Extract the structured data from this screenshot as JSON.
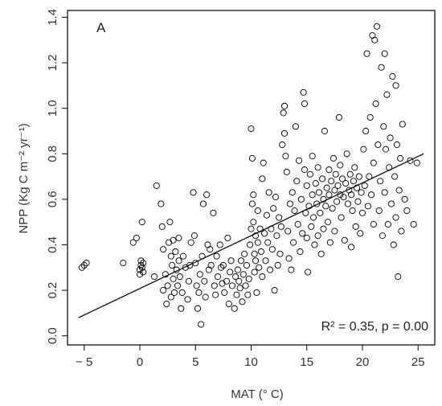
{
  "chart_data": {
    "type": "scatter",
    "panel_label": "A",
    "xlabel": "MAT (° C)",
    "ylabel": "NPP (Kg C m⁻² yr⁻¹)",
    "xlim": [
      -6.5,
      26.5
    ],
    "ylim": [
      -0.04,
      1.43
    ],
    "xticks": [
      -5,
      0,
      5,
      10,
      15,
      20,
      25
    ],
    "xtick_labels": [
      "− 5",
      "0",
      "5",
      "10",
      "15",
      "20",
      "25"
    ],
    "yticks": [
      0.0,
      0.2,
      0.4,
      0.6,
      0.8,
      1.0,
      1.2,
      1.4
    ],
    "ytick_labels": [
      "0.0",
      "0.2",
      "0.4",
      "0.6",
      "0.8",
      "1.0",
      "1.2",
      "1.4"
    ],
    "grid": false,
    "annotation": "R² = 0.35, p = 0.00",
    "fit_line": {
      "x": [
        -5.5,
        25.5
      ],
      "y": [
        0.08,
        0.8
      ]
    },
    "points": [
      [
        -5.2,
        0.3
      ],
      [
        -5.0,
        0.31
      ],
      [
        -4.8,
        0.32
      ],
      [
        -1.5,
        0.32
      ],
      [
        -0.6,
        0.41
      ],
      [
        -0.3,
        0.43
      ],
      [
        0.0,
        0.27
      ],
      [
        0.0,
        0.29
      ],
      [
        0.1,
        0.31
      ],
      [
        0.1,
        0.33
      ],
      [
        0.2,
        0.3
      ],
      [
        0.2,
        0.5
      ],
      [
        0.3,
        0.28
      ],
      [
        0.3,
        0.32
      ],
      [
        1.3,
        0.26
      ],
      [
        1.5,
        0.66
      ],
      [
        1.9,
        0.58
      ],
      [
        2.0,
        0.48
      ],
      [
        2.1,
        0.38
      ],
      [
        2.1,
        0.2
      ],
      [
        2.3,
        0.27
      ],
      [
        2.4,
        0.14
      ],
      [
        2.5,
        0.22
      ],
      [
        2.6,
        0.41
      ],
      [
        2.7,
        0.5
      ],
      [
        2.8,
        0.35
      ],
      [
        2.8,
        0.17
      ],
      [
        2.9,
        0.31
      ],
      [
        3.0,
        0.25
      ],
      [
        3.0,
        0.42
      ],
      [
        3.1,
        0.19
      ],
      [
        3.2,
        0.37
      ],
      [
        3.3,
        0.29
      ],
      [
        3.4,
        0.22
      ],
      [
        3.5,
        0.43
      ],
      [
        3.5,
        0.33
      ],
      [
        3.6,
        0.26
      ],
      [
        3.7,
        0.12
      ],
      [
        3.8,
        0.19
      ],
      [
        3.9,
        0.35
      ],
      [
        4.1,
        0.3
      ],
      [
        4.3,
        0.16
      ],
      [
        4.4,
        0.24
      ],
      [
        4.5,
        0.31
      ],
      [
        4.6,
        0.41
      ],
      [
        4.8,
        0.63
      ],
      [
        4.9,
        0.44
      ],
      [
        5.0,
        0.32
      ],
      [
        5.1,
        0.22
      ],
      [
        5.2,
        0.12
      ],
      [
        5.3,
        0.19
      ],
      [
        5.4,
        0.27
      ],
      [
        5.5,
        0.05
      ],
      [
        5.6,
        0.35
      ],
      [
        5.7,
        0.58
      ],
      [
        5.8,
        0.24
      ],
      [
        5.9,
        0.17
      ],
      [
        6.0,
        0.62
      ],
      [
        6.1,
        0.4
      ],
      [
        6.2,
        0.29
      ],
      [
        6.3,
        0.38
      ],
      [
        6.4,
        0.31
      ],
      [
        6.6,
        0.54
      ],
      [
        6.7,
        0.22
      ],
      [
        6.8,
        0.18
      ],
      [
        6.9,
        0.35
      ],
      [
        7.0,
        0.26
      ],
      [
        7.2,
        0.4
      ],
      [
        7.3,
        0.3
      ],
      [
        7.4,
        0.23
      ],
      [
        7.5,
        0.31
      ],
      [
        7.6,
        0.19
      ],
      [
        7.8,
        0.24
      ],
      [
        7.9,
        0.43
      ],
      [
        8.0,
        0.14
      ],
      [
        8.1,
        0.28
      ],
      [
        8.2,
        0.33
      ],
      [
        8.3,
        0.22
      ],
      [
        8.5,
        0.12
      ],
      [
        8.6,
        0.26
      ],
      [
        8.7,
        0.18
      ],
      [
        8.8,
        0.29
      ],
      [
        8.9,
        0.24
      ],
      [
        9.0,
        0.21
      ],
      [
        9.1,
        0.33
      ],
      [
        9.2,
        0.15
      ],
      [
        9.3,
        0.27
      ],
      [
        9.4,
        0.36
      ],
      [
        9.5,
        0.22
      ],
      [
        9.6,
        0.31
      ],
      [
        9.7,
        0.18
      ],
      [
        9.8,
        0.25
      ],
      [
        9.9,
        0.4
      ],
      [
        10.0,
        0.47
      ],
      [
        10.0,
        0.91
      ],
      [
        10.1,
        0.78
      ],
      [
        10.1,
        0.58
      ],
      [
        10.2,
        0.62
      ],
      [
        10.2,
        0.5
      ],
      [
        10.3,
        0.36
      ],
      [
        10.3,
        0.28
      ],
      [
        10.4,
        0.44
      ],
      [
        10.4,
        0.33
      ],
      [
        10.5,
        0.19
      ],
      [
        10.6,
        0.41
      ],
      [
        10.6,
        0.55
      ],
      [
        10.7,
        0.3
      ],
      [
        10.8,
        0.47
      ],
      [
        10.9,
        0.37
      ],
      [
        11.0,
        0.26
      ],
      [
        11.0,
        0.69
      ],
      [
        11.1,
        0.76
      ],
      [
        11.2,
        0.45
      ],
      [
        11.3,
        0.33
      ],
      [
        11.4,
        0.53
      ],
      [
        11.5,
        0.41
      ],
      [
        11.6,
        0.63
      ],
      [
        11.7,
        0.29
      ],
      [
        11.8,
        0.47
      ],
      [
        11.9,
        0.38
      ],
      [
        12.0,
        0.56
      ],
      [
        12.1,
        0.2
      ],
      [
        12.2,
        0.61
      ],
      [
        12.3,
        0.44
      ],
      [
        12.4,
        0.31
      ],
      [
        12.5,
        0.52
      ],
      [
        12.6,
        0.36
      ],
      [
        12.7,
        0.48
      ],
      [
        12.8,
        0.84
      ],
      [
        12.9,
        0.98
      ],
      [
        13.0,
        1.01
      ],
      [
        13.0,
        0.89
      ],
      [
        13.1,
        0.79
      ],
      [
        13.2,
        0.72
      ],
      [
        13.3,
        0.46
      ],
      [
        13.4,
        0.34
      ],
      [
        13.5,
        0.58
      ],
      [
        13.6,
        0.29
      ],
      [
        13.7,
        0.63
      ],
      [
        13.8,
        0.41
      ],
      [
        13.9,
        0.55
      ],
      [
        14.0,
        0.92
      ],
      [
        14.1,
        0.68
      ],
      [
        14.2,
        0.49
      ],
      [
        14.3,
        0.77
      ],
      [
        14.4,
        0.37
      ],
      [
        14.5,
        0.6
      ],
      [
        14.6,
        0.45
      ],
      [
        14.7,
        1.07
      ],
      [
        14.8,
        1.02
      ],
      [
        14.8,
        0.73
      ],
      [
        14.9,
        0.54
      ],
      [
        15.0,
        0.66
      ],
      [
        15.0,
        0.43
      ],
      [
        15.1,
        0.28
      ],
      [
        15.2,
        0.57
      ],
      [
        15.3,
        0.71
      ],
      [
        15.4,
        0.48
      ],
      [
        15.5,
        0.62
      ],
      [
        15.5,
        0.79
      ],
      [
        15.6,
        0.52
      ],
      [
        15.7,
        0.4
      ],
      [
        15.8,
        0.67
      ],
      [
        15.9,
        0.58
      ],
      [
        16.0,
        0.44
      ],
      [
        16.0,
        0.74
      ],
      [
        16.1,
        0.63
      ],
      [
        16.2,
        0.54
      ],
      [
        16.3,
        0.36
      ],
      [
        16.4,
        0.69
      ],
      [
        16.5,
        0.6
      ],
      [
        16.5,
        0.47
      ],
      [
        16.6,
        0.9
      ],
      [
        16.7,
        0.57
      ],
      [
        16.8,
        0.65
      ],
      [
        16.9,
        0.5
      ],
      [
        17.0,
        0.73
      ],
      [
        17.0,
        0.62
      ],
      [
        17.1,
        0.41
      ],
      [
        17.2,
        0.68
      ],
      [
        17.3,
        0.56
      ],
      [
        17.4,
        0.78
      ],
      [
        17.5,
        0.64
      ],
      [
        17.5,
        0.46
      ],
      [
        17.6,
        0.71
      ],
      [
        17.7,
        0.59
      ],
      [
        17.8,
        0.66
      ],
      [
        17.9,
        0.96
      ],
      [
        18.0,
        0.62
      ],
      [
        18.0,
        0.75
      ],
      [
        18.1,
        0.52
      ],
      [
        18.2,
        0.69
      ],
      [
        18.3,
        0.61
      ],
      [
        18.4,
        0.42
      ],
      [
        18.5,
        0.67
      ],
      [
        18.6,
        0.8
      ],
      [
        18.7,
        0.58
      ],
      [
        18.8,
        0.64
      ],
      [
        18.9,
        0.71
      ],
      [
        19.0,
        0.39
      ],
      [
        19.0,
        0.62
      ],
      [
        19.1,
        0.55
      ],
      [
        19.2,
        0.68
      ],
      [
        19.3,
        0.74
      ],
      [
        19.4,
        0.48
      ],
      [
        19.5,
        0.65
      ],
      [
        19.6,
        0.59
      ],
      [
        19.7,
        0.7
      ],
      [
        19.8,
        0.45
      ],
      [
        19.9,
        0.63
      ],
      [
        20.0,
        0.54
      ],
      [
        20.1,
        0.82
      ],
      [
        20.2,
        0.66
      ],
      [
        20.3,
        0.9
      ],
      [
        20.4,
        1.24
      ],
      [
        20.5,
        0.57
      ],
      [
        20.6,
        0.7
      ],
      [
        20.7,
        0.96
      ],
      [
        20.8,
        0.62
      ],
      [
        20.9,
        1.32
      ],
      [
        21.0,
        0.76
      ],
      [
        21.0,
        0.49
      ],
      [
        21.1,
        1.3
      ],
      [
        21.2,
        1.02
      ],
      [
        21.3,
        1.36
      ],
      [
        21.4,
        0.84
      ],
      [
        21.5,
        0.55
      ],
      [
        21.6,
        0.68
      ],
      [
        21.7,
        1.18
      ],
      [
        21.8,
        0.44
      ],
      [
        21.9,
        0.92
      ],
      [
        22.0,
        1.24
      ],
      [
        22.0,
        0.63
      ],
      [
        22.1,
        0.82
      ],
      [
        22.2,
        1.06
      ],
      [
        22.3,
        0.49
      ],
      [
        22.4,
        0.74
      ],
      [
        22.5,
        0.87
      ],
      [
        22.6,
        0.58
      ],
      [
        22.7,
        1.14
      ],
      [
        22.8,
        0.4
      ],
      [
        22.9,
        0.7
      ],
      [
        23.0,
        1.1
      ],
      [
        23.0,
        0.52
      ],
      [
        23.1,
        0.84
      ],
      [
        23.2,
        0.26
      ],
      [
        23.3,
        0.64
      ],
      [
        23.4,
        0.78
      ],
      [
        23.5,
        0.46
      ],
      [
        23.6,
        0.93
      ],
      [
        23.8,
        0.6
      ],
      [
        24.0,
        0.55
      ],
      [
        24.3,
        0.77
      ],
      [
        24.6,
        0.49
      ],
      [
        24.9,
        0.76
      ]
    ]
  }
}
